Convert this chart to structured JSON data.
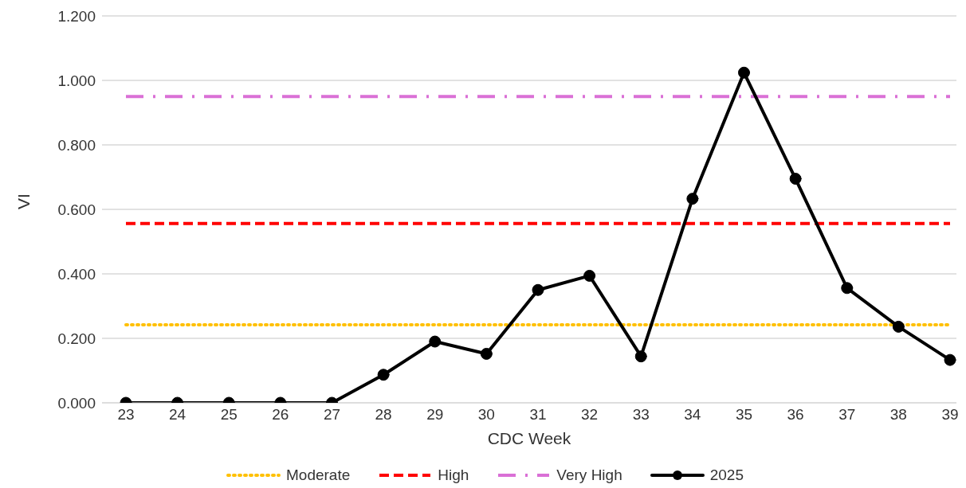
{
  "chart_data": {
    "type": "line",
    "xlabel": "CDC Week",
    "ylabel": "VI",
    "categories": [
      "23",
      "24",
      "25",
      "26",
      "27",
      "28",
      "29",
      "30",
      "31",
      "32",
      "33",
      "34",
      "35",
      "36",
      "37",
      "38",
      "39"
    ],
    "series": [
      {
        "name": "Moderate",
        "color": "#ffc000",
        "line_style": "dotted",
        "marker": "none",
        "values": [
          0.242,
          0.242,
          0.242,
          0.242,
          0.242,
          0.242,
          0.242,
          0.242,
          0.242,
          0.242,
          0.242,
          0.242,
          0.242,
          0.242,
          0.242,
          0.242,
          0.242
        ]
      },
      {
        "name": "High",
        "color": "#ff0000",
        "line_style": "dashed",
        "marker": "none",
        "values": [
          0.556,
          0.556,
          0.556,
          0.556,
          0.556,
          0.556,
          0.556,
          0.556,
          0.556,
          0.556,
          0.556,
          0.556,
          0.556,
          0.556,
          0.556,
          0.556,
          0.556
        ]
      },
      {
        "name": "Very High",
        "color": "#da70d6",
        "line_style": "dashdot",
        "marker": "none",
        "values": [
          0.95,
          0.95,
          0.95,
          0.95,
          0.95,
          0.95,
          0.95,
          0.95,
          0.95,
          0.95,
          0.95,
          0.95,
          0.95,
          0.95,
          0.95,
          0.95,
          0.95
        ]
      },
      {
        "name": "2025",
        "color": "#000000",
        "line_style": "solid",
        "marker": "circle",
        "values": [
          0,
          0,
          0,
          0,
          0,
          0.087,
          0.19,
          0.152,
          0.35,
          0.394,
          0.144,
          0.633,
          1.024,
          0.695,
          0.356,
          0.236,
          0.133
        ]
      }
    ],
    "ylim": [
      0,
      1.2
    ],
    "yticks": [
      {
        "value": 0,
        "label": "0.000"
      },
      {
        "value": 0.2,
        "label": "0.200"
      },
      {
        "value": 0.4,
        "label": "0.400"
      },
      {
        "value": 0.6,
        "label": "0.600"
      },
      {
        "value": 0.8,
        "label": "0.800"
      },
      {
        "value": 1,
        "label": "1.000"
      },
      {
        "value": 1.2,
        "label": "1.200"
      }
    ],
    "grid": "y",
    "legend": "bottom"
  }
}
